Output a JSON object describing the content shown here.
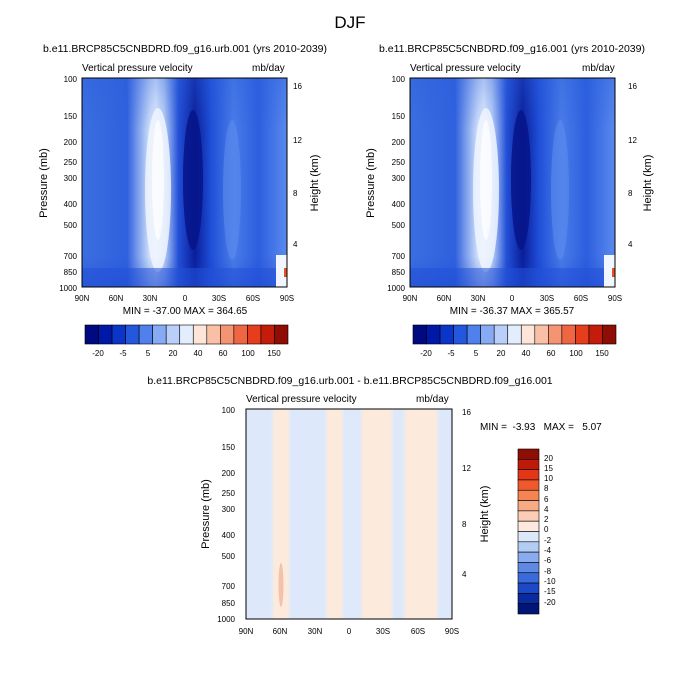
{
  "figure_title": "DJF",
  "chart_data": [
    {
      "type": "heatmap",
      "title": "b.e11.BRCP85C5CNBDRD.f09_g16.urb.001 (yrs 2010-2039)",
      "subtitle_left": "Vertical pressure velocity",
      "subtitle_right": "mb/day",
      "ylabel": "Pressure (mb)",
      "ylabel_right": "Height (km)",
      "x_ticks": [
        "90N",
        "60N",
        "30N",
        "0",
        "30S",
        "60S",
        "90S"
      ],
      "y_ticks": [
        "100",
        "150",
        "200",
        "250",
        "300",
        "400",
        "500",
        "700",
        "850",
        "1000"
      ],
      "y_ticks_right": [
        "16",
        "12",
        "8",
        "4"
      ],
      "stats_text": "MIN = -37.00   MAX = 364.65",
      "min": -37.0,
      "max": 364.65,
      "colorbar_labels": [
        "-20",
        "-5",
        "5",
        "20",
        "40",
        "60",
        "100",
        "150"
      ]
    },
    {
      "type": "heatmap",
      "title": "b.e11.BRCP85C5CNBDRD.f09_g16.001 (yrs 2010-2039)",
      "subtitle_left": "Vertical pressure velocity",
      "subtitle_right": "mb/day",
      "ylabel": "Pressure (mb)",
      "ylabel_right": "Height (km)",
      "x_ticks": [
        "90N",
        "60N",
        "30N",
        "0",
        "30S",
        "60S",
        "90S"
      ],
      "y_ticks": [
        "100",
        "150",
        "200",
        "250",
        "300",
        "400",
        "500",
        "700",
        "850",
        "1000"
      ],
      "y_ticks_right": [
        "16",
        "12",
        "8",
        "4"
      ],
      "stats_text": "MIN = -36.37   MAX = 365.57",
      "min": -36.37,
      "max": 365.57,
      "colorbar_labels": [
        "-20",
        "-5",
        "5",
        "20",
        "40",
        "60",
        "100",
        "150"
      ]
    },
    {
      "type": "heatmap",
      "title": "b.e11.BRCP85C5CNBDRD.f09_g16.urb.001 - b.e11.BRCP85C5CNBDRD.f09_g16.001",
      "subtitle_left": "Vertical pressure velocity",
      "subtitle_right": "mb/day",
      "ylabel": "Pressure (mb)",
      "ylabel_right": "Height (km)",
      "x_ticks": [
        "90N",
        "60N",
        "30N",
        "0",
        "30S",
        "60S",
        "90S"
      ],
      "y_ticks": [
        "100",
        "150",
        "200",
        "250",
        "300",
        "400",
        "500",
        "700",
        "850",
        "1000"
      ],
      "y_ticks_right": [
        "16",
        "12",
        "8",
        "4"
      ],
      "stats_text": "MIN =  -3.93   MAX =   5.07",
      "min": -3.93,
      "max": 5.07,
      "colorbar_labels": [
        "20",
        "15",
        "10",
        "8",
        "6",
        "4",
        "2",
        "0",
        "-2",
        "-4",
        "-6",
        "-8",
        "-10",
        "-15",
        "-20"
      ]
    }
  ],
  "colors": {
    "main_colorbar": [
      "#000a80",
      "#0018a8",
      "#0a35c8",
      "#2357dd",
      "#4f80ec",
      "#86aaf4",
      "#b9cffa",
      "#e2edfd",
      "#fde6d9",
      "#f9c0a5",
      "#f49473",
      "#ee6643",
      "#e63d1c",
      "#c41b0a",
      "#8e0d04"
    ],
    "diff_colorbar": [
      "#8e0d04",
      "#bf1a09",
      "#e23616",
      "#ef5a2c",
      "#f48552",
      "#f7ab85",
      "#facdb4",
      "#fde9dd",
      "#dbe8fa",
      "#b3ccf4",
      "#88aced",
      "#5f8ae4",
      "#3a6bdc",
      "#1d49c8",
      "#0a2a9f",
      "#001578"
    ]
  }
}
